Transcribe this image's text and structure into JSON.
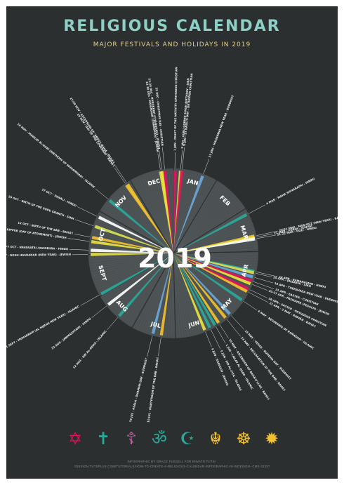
{
  "title": "RELIGIOUS CALENDAR",
  "subtitle": "MAJOR FESTIVALS AND HOLIDAYS IN 2019",
  "center_year": "2019",
  "months": [
    "JAN",
    "FEB",
    "MAR",
    "APR",
    "MAY",
    "JUN",
    "JUL",
    "AUG",
    "SEPT",
    "OCT",
    "NOV",
    "DEC"
  ],
  "colors": {
    "background": "#2b2f30",
    "wheel": "#4b5152",
    "christian": "#e0145c",
    "hindu": "#ffffff",
    "jewish": "#e8e340",
    "islamic": "#2aa89a",
    "sikh": "#d8e050",
    "buddhist": "#6aa6d8",
    "bahai": "#f0c030"
  },
  "events": [
    {
      "text": "1 JAN - FEAST OF THE NATIVITY ORTHODOX CHRISTIAN",
      "color": "#e0145c",
      "day": 1
    },
    {
      "text": "5 JAN - GURU GOBIND SINGH BIRTHDAY - SIKH",
      "color": "#d8e050",
      "day": 5
    },
    {
      "text": "6 JAN - ST BASIL'S DAY - ORTHODOX CHRISTIAN",
      "color": "#e0145c",
      "day": 6
    },
    {
      "text": "21 JAN - MAHAYANA NEW YEAR - BUDDHIST",
      "color": "#6aa6d8",
      "day": 21
    },
    {
      "text": "4 MAR - MAHA SHIVARATRI - HINDU",
      "color": "#2aa89a",
      "day": 63
    },
    {
      "text": "20/21 MAR - NAW-RÚZ (NEW YEAR) - BAHÁ'Í",
      "color": "#f0c030",
      "day": 79
    },
    {
      "text": "21 MAR - PURIM - JEWISH",
      "color": "#e8e340",
      "day": 80
    },
    {
      "text": "21-22 MAR - HOLI - HINDU",
      "color": "#ffffff",
      "day": 81
    },
    {
      "text": "14 APR - RAMANAVAMI - HINDU",
      "color": "#2aa89a",
      "day": 104
    },
    {
      "text": "14 APR - VAISAKHI - SIKH",
      "color": "#d8e050",
      "day": 105
    },
    {
      "text": "18 APR - THERAVADA NEW YEAR - BUDDHIST",
      "color": "#6aa6d8",
      "day": 108
    },
    {
      "text": "21 APR - EASTER - CHRISTIAN",
      "color": "#e0145c",
      "day": 111
    },
    {
      "text": "20-27 APR - PASSOVER (PESACH) - JEWISH",
      "color": "#e8e340",
      "day": 113
    },
    {
      "text": "28 APR - EASTER - ORTHODOX CHRISTIAN",
      "color": "#e0145c",
      "day": 117
    },
    {
      "text": "21 APR - 2 MAY - RIDVÁN - BAHÁ'Í",
      "color": "#f0c030",
      "day": 119
    },
    {
      "text": "6 MAY - BEGINNING OF RAMADAN - ISLAMIC",
      "color": "#2aa89a",
      "day": 126
    },
    {
      "text": "19 MAY - VESAK - BUDDHA DAY - BUDDHIST",
      "color": "#6aa6d8",
      "day": 139
    },
    {
      "text": "23 MAY - DECLARATION OF THE BÁB - BAHÁ'Í",
      "color": "#f0c030",
      "day": 143
    },
    {
      "text": "29 MAY - ASCENSION OF BAHÁ'U'LLÁH - BAHÁ'Í",
      "color": "#f0c030",
      "day": 149
    },
    {
      "text": "1 JUN - LAILAT AL QADR - ISLAMIC",
      "color": "#2aa89a",
      "day": 152
    },
    {
      "text": "5 JUN - EID AL-FITR - ISLAMIC",
      "color": "#2aa89a",
      "day": 156
    },
    {
      "text": "9 JUN - SHAVUOT - JEWISH",
      "color": "#e8e340",
      "day": 160
    },
    {
      "text": "10 JUL - MARTYRDOM OF THE BÁB - BAHÁ'Í",
      "color": "#f0c030",
      "day": 191
    },
    {
      "text": "16 JUL - ASALA - DHAMMA DAY - BUDDHIST",
      "color": "#6aa6d8",
      "day": 197
    },
    {
      "text": "12 AUG - EID AL-ADHA - ISLAMIC",
      "color": "#2aa89a",
      "day": 224
    },
    {
      "text": "23 AUG - JANMASHTAMI - HINDU",
      "color": "#ffffff",
      "day": 235
    },
    {
      "text": "1 SEPT - MUHARRAM (AL HIJRAH NEW YEAR) - ISLAMIC",
      "color": "#2aa89a",
      "day": 244
    },
    {
      "text": "30 SEPT-1 OCT - ROSH HASHANAH (NEW YEAR) - JEWISH",
      "color": "#e8e340",
      "day": 273
    },
    {
      "text": "29 SEPT-7 OCT - NAVARATRI /DASSEHRA - HINDU",
      "color": "#ffffff",
      "day": 276
    },
    {
      "text": "9 OCT - YOM KIPPUR (DAY OF ATONEMENT) - JEWISH",
      "color": "#e8e340",
      "day": 282
    },
    {
      "text": "12 OCT - BIRTH OF THE BÁB - BAHÁ'Í",
      "color": "#f0c030",
      "day": 285
    },
    {
      "text": "20 OCT - BIRTH OF THE GURU GRANTH - SIKH",
      "color": "#d8e050",
      "day": 293
    },
    {
      "text": "27 OCT - DIWALI - HINDU",
      "color": "#ffffff",
      "day": 300
    },
    {
      "text": "10 NOV - MAWLID AL-NABI (BIRTHDAY OF MUHAMMAD) - ISLAMIC",
      "color": "#2aa89a",
      "day": 314
    },
    {
      "text": "26 NOV - DAY OF THE COVENANT - BAHÁ'Í",
      "color": "#f0c030",
      "day": 330
    },
    {
      "text": "27/28 NOV - ASCENSION OF 'ABDU'L-BAHÁ - BAHÁ'Í",
      "color": "#f0c030",
      "day": 331
    },
    {
      "text": "22-30 DEC - HANUKKAH (CHANUKAH) - JEWISH",
      "color": "#e8e340",
      "day": 356
    },
    {
      "text": "23-30 DEC - HANUKKAH (CHANUKAH) - JEWISH",
      "color": "#e8e340",
      "day": 357
    },
    {
      "text": "25 DEC - CHRISTMAS DAY - CHRISTIAN",
      "color": "#e0145c",
      "day": 359
    }
  ],
  "symbols": [
    {
      "name": "star-of-david-icon",
      "glyph": "✡",
      "color": "#e0145c"
    },
    {
      "name": "latin-cross-icon",
      "glyph": "✝",
      "color": "#2aa89a"
    },
    {
      "name": "orthodox-cross-icon",
      "glyph": "☦",
      "color": "#c060a0"
    },
    {
      "name": "om-icon",
      "glyph": "ॐ",
      "color": "#2aa89a"
    },
    {
      "name": "crescent-star-icon",
      "glyph": "☪",
      "color": "#2aa89a"
    },
    {
      "name": "khanda-icon",
      "glyph": "☬",
      "color": "#f0c030"
    },
    {
      "name": "dharma-wheel-icon",
      "glyph": "☸",
      "color": "#f0c030"
    },
    {
      "name": "nine-pointed-star-icon",
      "glyph": "✹",
      "color": "#f0c030"
    }
  ],
  "credit_line1": "INFOGRAPHIC BY GRACE FUSSELL FOR ENVATO TUTS+",
  "credit_line2": "//DESIGN.TUTSPLUS.COM/TUTORIALS/HOW-TO-CREATE-A-RELIGIOUS-CALENDAR-INFOGRAPHIC-IN-INDESIGN--CMS-32337"
}
